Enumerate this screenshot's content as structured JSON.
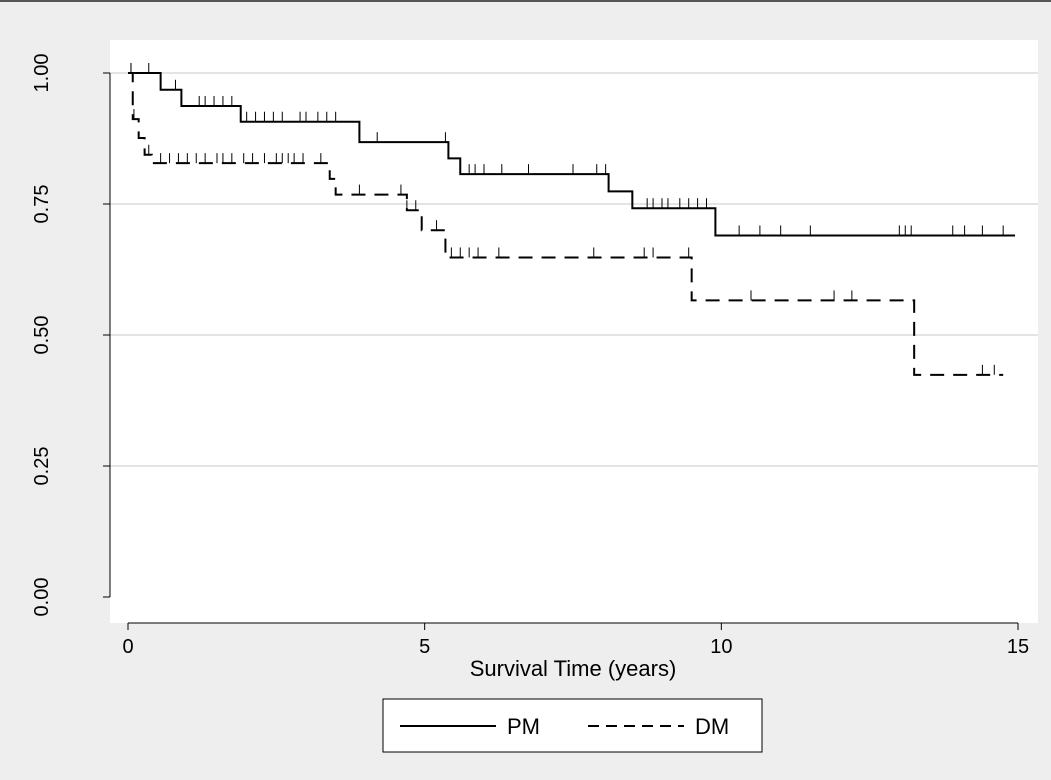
{
  "chart_data": {
    "type": "line",
    "subtype": "kaplan-meier step",
    "title": "",
    "xlabel": "Survival Time (years)",
    "ylabel": "",
    "xlim": [
      0,
      15
    ],
    "ylim": [
      0,
      1
    ],
    "xticks": [
      0,
      5,
      10,
      15
    ],
    "xtick_labels": [
      "0",
      "5",
      "10",
      "15"
    ],
    "yticks": [
      0,
      0.25,
      0.5,
      0.75,
      1.0
    ],
    "ytick_labels": [
      "0.00",
      "0.25",
      "0.50",
      "0.75",
      "1.00"
    ],
    "grid": "horizontal",
    "legend_position": "bottom-center",
    "colors": {
      "plot_region": "#ffffff",
      "outer_region": "#eeeeee",
      "grid": "#e4e4e4",
      "line": "#000000"
    },
    "series": [
      {
        "name": "PM",
        "style": "solid",
        "steps": [
          [
            0,
            1.0
          ],
          [
            0.55,
            0.968
          ],
          [
            0.9,
            0.937
          ],
          [
            1.9,
            0.907
          ],
          [
            3.9,
            0.868
          ],
          [
            5.4,
            0.837
          ],
          [
            5.6,
            0.807
          ],
          [
            8.1,
            0.774
          ],
          [
            8.5,
            0.742
          ],
          [
            9.9,
            0.69
          ],
          [
            14.95,
            0.69
          ]
        ],
        "censored": [
          0.05,
          0.35,
          0.55,
          0.8,
          1.2,
          1.3,
          1.45,
          1.6,
          1.75,
          2.0,
          2.15,
          2.3,
          2.45,
          2.6,
          2.9,
          3.0,
          3.2,
          3.35,
          3.5,
          4.2,
          5.35,
          5.75,
          5.85,
          6.0,
          6.3,
          6.75,
          7.5,
          7.9,
          8.05,
          8.75,
          8.85,
          9.0,
          9.1,
          9.3,
          9.45,
          9.6,
          9.75,
          10.3,
          10.65,
          11.0,
          11.5,
          13.0,
          13.1,
          13.2,
          13.9,
          14.1,
          14.4,
          14.75
        ]
      },
      {
        "name": "DM",
        "style": "dashed",
        "steps": [
          [
            0,
            1.0
          ],
          [
            0.08,
            0.912
          ],
          [
            0.18,
            0.876
          ],
          [
            0.28,
            0.844
          ],
          [
            0.4,
            0.828
          ],
          [
            3.4,
            0.798
          ],
          [
            3.5,
            0.768
          ],
          [
            4.7,
            0.738
          ],
          [
            4.95,
            0.7
          ],
          [
            5.35,
            0.648
          ],
          [
            9.5,
            0.566
          ],
          [
            13.25,
            0.424
          ],
          [
            14.75,
            0.424
          ]
        ],
        "censored": [
          0.05,
          0.1,
          0.35,
          0.55,
          0.7,
          0.85,
          1.0,
          1.15,
          1.3,
          1.5,
          1.6,
          1.75,
          1.95,
          2.1,
          2.3,
          2.5,
          2.6,
          2.7,
          2.8,
          2.95,
          3.25,
          3.9,
          4.6,
          4.7,
          4.85,
          5.2,
          5.45,
          5.6,
          5.75,
          5.9,
          6.25,
          7.85,
          8.7,
          8.85,
          9.45,
          10.5,
          11.9,
          12.2,
          14.4,
          14.6
        ]
      }
    ]
  }
}
